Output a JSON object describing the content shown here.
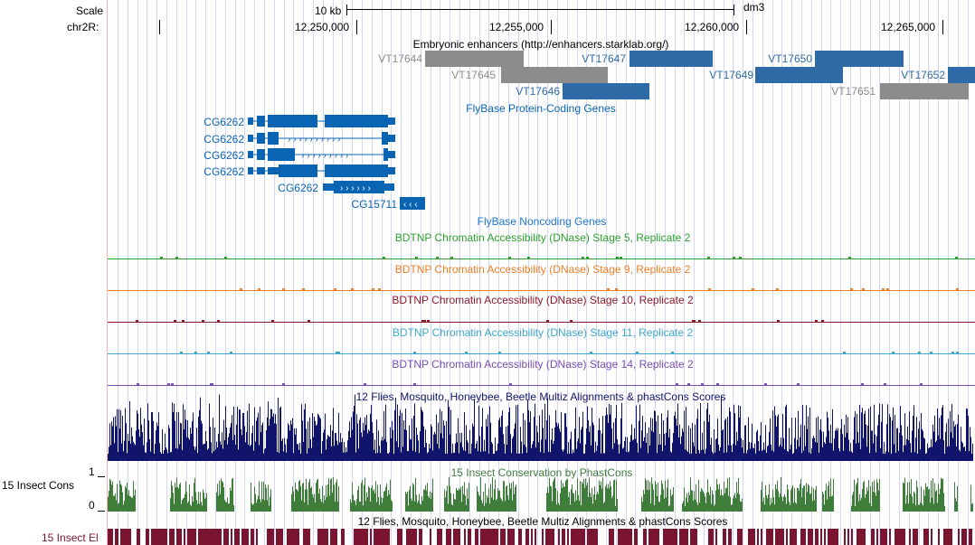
{
  "ruler": {
    "scale_label": "Scale",
    "chrom_label": "chr2R:",
    "scale_bar_text": "10 kb",
    "assembly": "dm3",
    "positions": [
      "12,250,000",
      "12,255,000",
      "12,260,000",
      "12,265,000"
    ]
  },
  "tracks": {
    "enhancers": {
      "title": "Embryonic enhancers (http://enhancers.starklab.org/)",
      "items": [
        {
          "name": "VT17644",
          "color": "#8c8c8c"
        },
        {
          "name": "VT17645",
          "color": "#8c8c8c"
        },
        {
          "name": "VT17646",
          "color": "#2e6aa5"
        },
        {
          "name": "VT17647",
          "color": "#2e6aa5"
        },
        {
          "name": "VT17649",
          "color": "#2e6aa5"
        },
        {
          "name": "VT17650",
          "color": "#2e6aa5"
        },
        {
          "name": "VT17651",
          "color": "#8c8c8c"
        },
        {
          "name": "VT17652",
          "color": "#2e6aa5"
        }
      ]
    },
    "flybase_coding": {
      "title": "FlyBase Protein-Coding Genes",
      "color": "#0a64b4",
      "genes": [
        "CG6262",
        "CG6262",
        "CG6262",
        "CG6262",
        "CG6262",
        "CG15711"
      ]
    },
    "flybase_noncoding": {
      "title": "FlyBase Noncoding Genes",
      "color": "#1f77d0"
    },
    "dnase": [
      {
        "title": "BDTNP Chromatin Accessibility (DNase) Stage 5, Replicate 2",
        "color": "#2ca02c"
      },
      {
        "title": "BDTNP Chromatin Accessibility (DNase) Stage 9, Replicate 2",
        "color": "#f07f22"
      },
      {
        "title": "BDTNP Chromatin Accessibility (DNase) Stage 10, Replicate 2",
        "color": "#8b1a2a"
      },
      {
        "title": "BDTNP Chromatin Accessibility (DNase) Stage 11, Replicate 2",
        "color": "#3fa8c8"
      },
      {
        "title": "BDTNP Chromatin Accessibility (DNase) Stage 14, Replicate 2",
        "color": "#7a4fb0"
      }
    ],
    "multiz": {
      "title": "12 Flies, Mosquito, Honeybee, Beetle Multiz Alignments & phastCons Scores",
      "color": "#10146a"
    },
    "phastcons": {
      "title": "15 Insect Conservation by PhastCons",
      "side_label": "15 Insect Cons",
      "axis_max": "1",
      "axis_min": "0",
      "color": "#3e7d3a"
    },
    "elements": {
      "title": "12 Flies, Mosquito, Honeybee, Beetle Multiz Alignments & phastCons Scores",
      "side_label": "15 Insect El",
      "color": "#7a1430"
    }
  }
}
